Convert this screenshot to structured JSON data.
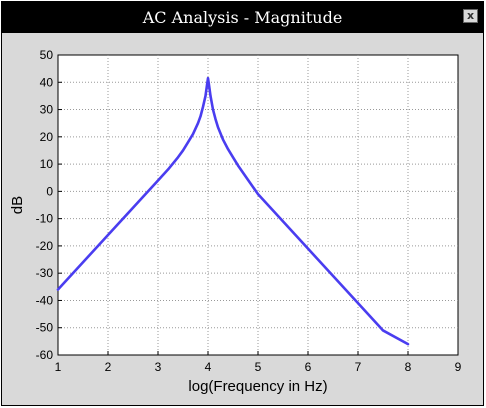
{
  "window": {
    "title": "AC Analysis - Magnitude",
    "close_label": "x"
  },
  "colors": {
    "line": "#4a3df0",
    "plot_background": "#ffffff",
    "window_background": "#d9d9d9",
    "titlebar": "#000000",
    "grid": "#999999"
  },
  "chart_data": {
    "type": "line",
    "title": "",
    "xlabel": "log(Frequency in Hz)",
    "ylabel": "dB",
    "xlim": [
      1,
      9
    ],
    "ylim": [
      -60,
      50
    ],
    "xticks": [
      1,
      2,
      3,
      4,
      5,
      6,
      7,
      8,
      9
    ],
    "yticks": [
      50,
      40,
      30,
      20,
      10,
      0,
      -10,
      -20,
      -30,
      -40,
      -50,
      -60
    ],
    "grid": true,
    "grid_style": "dotted",
    "legend": "none",
    "series": [
      {
        "x": [
          1,
          1.5,
          2,
          2.5,
          3,
          3.2,
          3.4,
          3.5,
          3.6,
          3.7,
          3.8,
          3.85,
          3.9,
          3.95,
          3.98,
          4,
          4.02,
          4.05,
          4.1,
          4.15,
          4.2,
          4.3,
          4.4,
          4.5,
          4.6,
          4.8,
          5,
          5.5,
          6,
          6.5,
          7,
          7.5,
          8
        ],
        "y": [
          -36,
          -26,
          -16,
          -6,
          4,
          8,
          12.5,
          15,
          18,
          21,
          25,
          27.5,
          31,
          35,
          39,
          41.5,
          39,
          35,
          30,
          26.5,
          23.5,
          19,
          15.5,
          12.5,
          9.5,
          4.2,
          -1,
          -11,
          -21,
          -31,
          -41,
          -51,
          -56
        ]
      }
    ]
  }
}
